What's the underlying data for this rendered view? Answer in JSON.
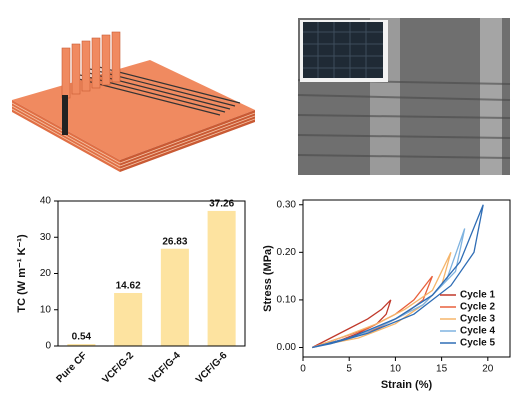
{
  "chart_data": [
    {
      "type": "bar",
      "y_label": "TC (W m⁻¹ K⁻¹)",
      "categories": [
        "Pure CF",
        "VCF/G-2",
        "VCF/G-4",
        "VCF/G-6"
      ],
      "values": [
        0.54,
        14.62,
        26.83,
        37.26
      ],
      "color": "#fde3a0",
      "ylim": [
        0,
        40
      ],
      "yticks": [
        0,
        10,
        20,
        30,
        40
      ]
    },
    {
      "type": "line",
      "x_label": "Strain (%)",
      "y_label": "Stress (MPa)",
      "xlim": [
        0,
        22.4
      ],
      "xticks": [
        0,
        5,
        10,
        15,
        20
      ],
      "ylim": [
        -0.02,
        0.31
      ],
      "yticks": [
        {
          "value": 0,
          "label": "0.00"
        },
        {
          "value": 0.1,
          "label": "0.10"
        },
        {
          "value": 0.2,
          "label": "0.20"
        },
        {
          "value": 0.3,
          "label": "0.30"
        }
      ],
      "legend": "lower right",
      "series": [
        {
          "name": "Cycle 1",
          "color": "#c0392b",
          "x": [
            1,
            3,
            5,
            7,
            8.5,
            9.5,
            9,
            8,
            6,
            4,
            2,
            1
          ],
          "y": [
            0,
            0.02,
            0.04,
            0.06,
            0.08,
            0.1,
            0.07,
            0.05,
            0.03,
            0.015,
            0.005,
            0
          ]
        },
        {
          "name": "Cycle 2",
          "color": "#e8603c",
          "x": [
            1,
            4,
            7,
            10,
            12,
            14,
            13,
            11,
            8,
            5,
            2,
            1
          ],
          "y": [
            0,
            0.02,
            0.04,
            0.07,
            0.1,
            0.15,
            0.1,
            0.07,
            0.04,
            0.02,
            0.005,
            0
          ]
        },
        {
          "name": "Cycle 3",
          "color": "#f5b56b",
          "x": [
            1,
            4,
            8,
            11,
            14,
            16,
            15,
            13,
            10,
            6,
            2,
            1
          ],
          "y": [
            0,
            0.02,
            0.05,
            0.08,
            0.12,
            0.2,
            0.13,
            0.09,
            0.05,
            0.02,
            0.005,
            0
          ]
        },
        {
          "name": "Cycle 4",
          "color": "#7fb3e0",
          "x": [
            1,
            5,
            9,
            13,
            15.5,
            17.5,
            16.5,
            14,
            10,
            6,
            2,
            1
          ],
          "y": [
            0,
            0.02,
            0.05,
            0.09,
            0.14,
            0.25,
            0.16,
            0.11,
            0.06,
            0.025,
            0.005,
            0
          ]
        },
        {
          "name": "Cycle 5",
          "color": "#2f6db5",
          "x": [
            1,
            5,
            10,
            14,
            17,
            19.5,
            18.5,
            16,
            12,
            7,
            3,
            1
          ],
          "y": [
            0,
            0.02,
            0.06,
            0.11,
            0.18,
            0.3,
            0.2,
            0.13,
            0.07,
            0.03,
            0.008,
            0
          ]
        }
      ]
    }
  ]
}
